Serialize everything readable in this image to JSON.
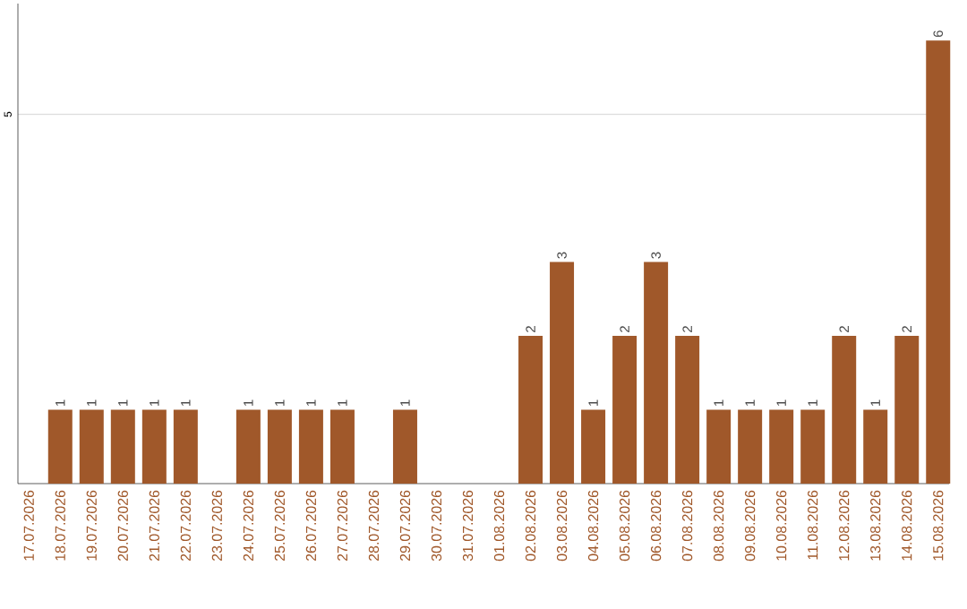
{
  "chart_data": {
    "type": "bar",
    "categories": [
      "17.07.2026",
      "18.07.2026",
      "19.07.2026",
      "20.07.2026",
      "21.07.2026",
      "22.07.2026",
      "23.07.2026",
      "24.07.2026",
      "25.07.2026",
      "26.07.2026",
      "27.07.2026",
      "28.07.2026",
      "29.07.2026",
      "30.07.2026",
      "31.07.2026",
      "01.08.2026",
      "02.08.2026",
      "03.08.2026",
      "04.08.2026",
      "05.08.2026",
      "06.08.2026",
      "07.08.2026",
      "08.08.2026",
      "09.08.2026",
      "10.08.2026",
      "11.08.2026",
      "12.08.2026",
      "13.08.2026",
      "14.08.2026",
      "15.08.2026"
    ],
    "values": [
      0,
      1,
      1,
      1,
      1,
      1,
      0,
      1,
      1,
      1,
      1,
      0,
      1,
      0,
      0,
      0,
      2,
      3,
      1,
      2,
      3,
      2,
      1,
      1,
      1,
      1,
      2,
      1,
      2,
      6
    ],
    "value_labels": [
      null,
      "1",
      "1",
      "1",
      "1",
      "1",
      null,
      "1",
      "1",
      "1",
      "1",
      null,
      "1",
      null,
      null,
      null,
      "2",
      "3",
      "1",
      "2",
      "3",
      "2",
      "1",
      "1",
      "1",
      "1",
      "2",
      "1",
      "2",
      "6"
    ],
    "color": "#a0582a",
    "ylim": [
      0,
      6.5
    ],
    "yticks": [
      5
    ],
    "grid": "y"
  }
}
